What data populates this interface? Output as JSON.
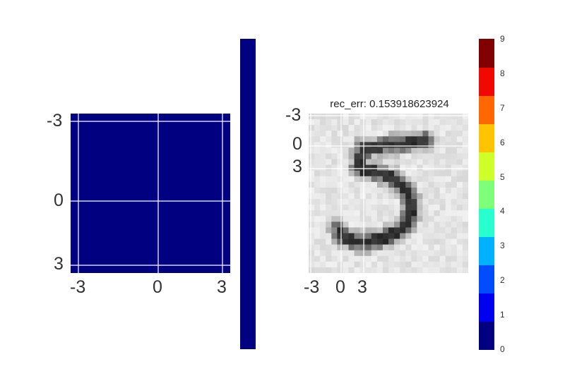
{
  "chart_data": [
    {
      "type": "heatmap",
      "x_ticks": [
        "-3",
        "0",
        "3"
      ],
      "y_ticks": [
        "-3",
        "0",
        "3"
      ],
      "xlim": [
        -3.3,
        3.3
      ],
      "ylim": [
        -3.3,
        3.3
      ],
      "grid": true,
      "values": "uniform",
      "cell_value": 0,
      "colormap": "jet",
      "fill_color": "#000080",
      "colorbar": true
    },
    {
      "type": "heatmap",
      "title": "rec_err: 0.153918623924",
      "x_ticks": [
        "-3",
        "0",
        "3"
      ],
      "y_ticks": [
        "-3",
        "0",
        "3"
      ],
      "colormap": "gray",
      "grid": true,
      "image_rows": 28,
      "image_cols": 28,
      "content": "reconstructed handwritten digit 5",
      "digit": "5",
      "colorbar": {
        "ticks": [
          "0",
          "1",
          "2",
          "3",
          "4",
          "5",
          "6",
          "7",
          "8",
          "9"
        ],
        "colors": [
          "#000080",
          "#0000f1",
          "#004dff",
          "#00b1ff",
          "#29ffce",
          "#7dff7a",
          "#ceff29",
          "#ffc400",
          "#ff6800",
          "#f10800",
          "#800000"
        ]
      }
    }
  ]
}
